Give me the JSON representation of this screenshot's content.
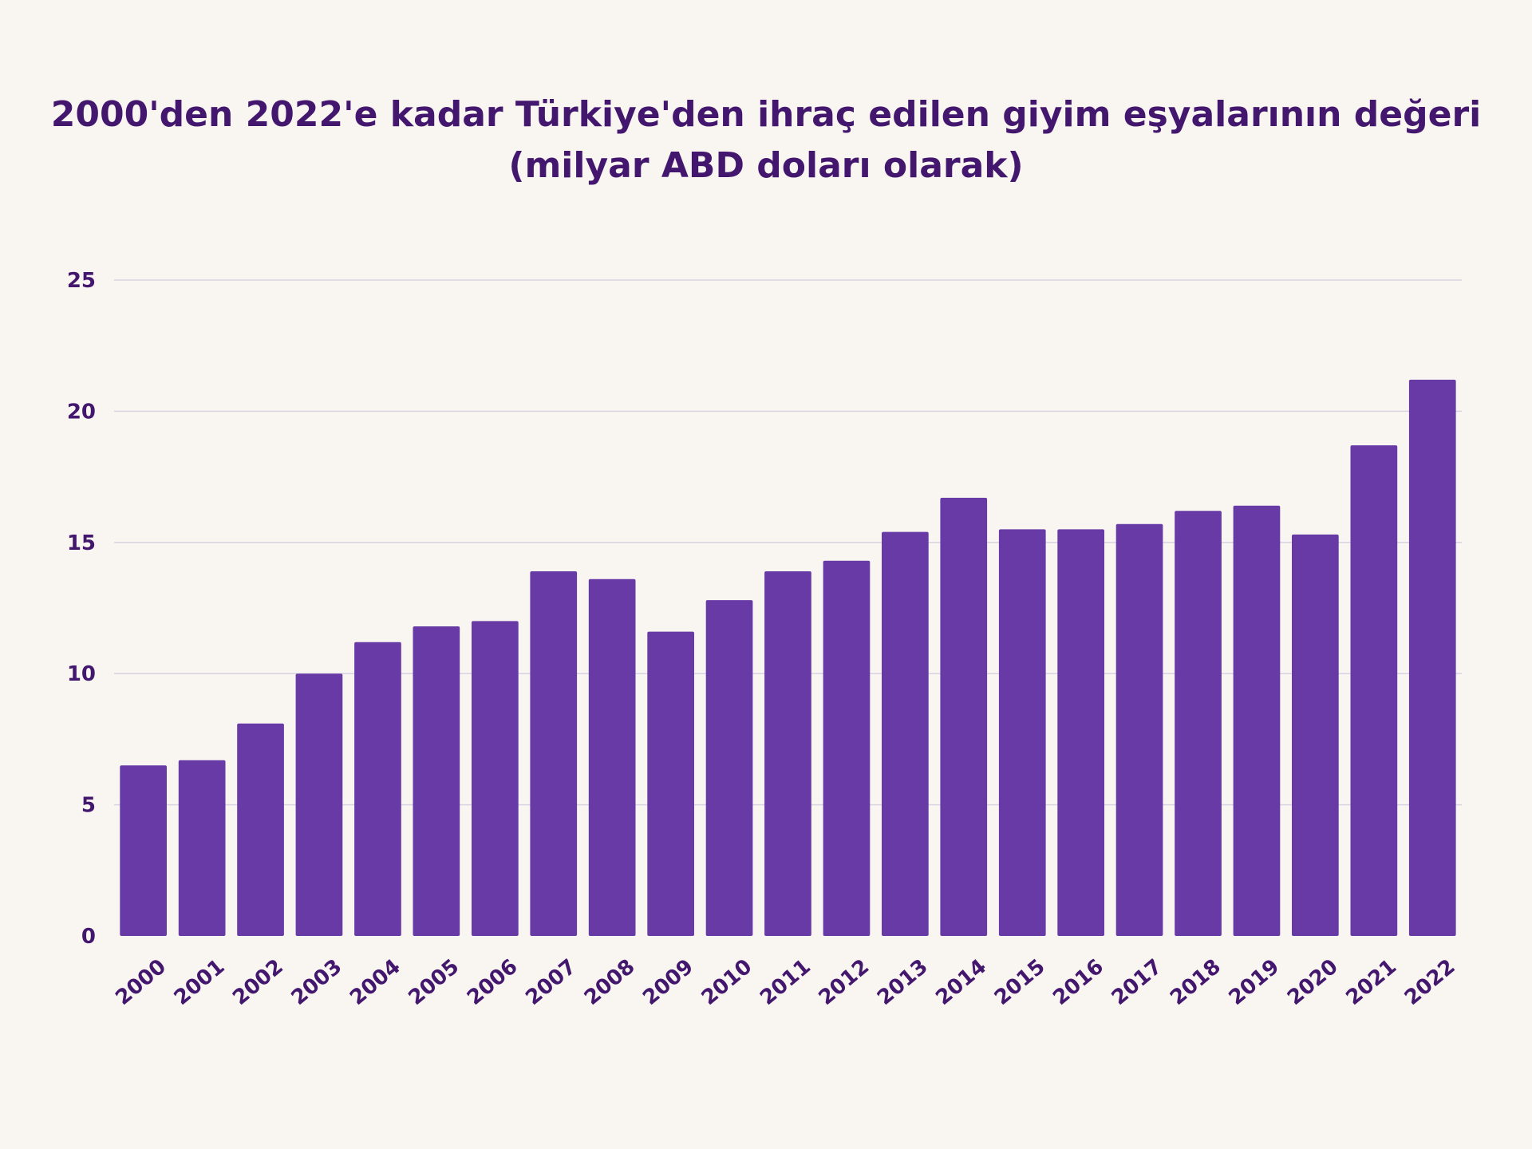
{
  "chart_data": {
    "type": "bar",
    "title_line1": "2000'den 2022'e kadar Türkiye'den ihraç edilen giyim eşyalarının değeri",
    "title_line2": "(milyar ABD doları olarak)",
    "xlabel": "",
    "ylabel": "",
    "categories": [
      "2000",
      "2001",
      "2002",
      "2003",
      "2004",
      "2005",
      "2006",
      "2007",
      "2008",
      "2009",
      "2010",
      "2011",
      "2012",
      "2013",
      "2014",
      "2015",
      "2016",
      "2017",
      "2018",
      "2019",
      "2020",
      "2021",
      "2022"
    ],
    "values": [
      6.5,
      6.7,
      8.1,
      10.0,
      11.2,
      11.8,
      12.0,
      13.9,
      13.6,
      11.6,
      12.8,
      13.9,
      14.3,
      15.4,
      16.7,
      15.5,
      15.5,
      15.7,
      16.2,
      16.4,
      15.3,
      18.7,
      21.2
    ],
    "ylim": [
      0,
      25
    ],
    "yticks": [
      0,
      5,
      10,
      15,
      20,
      25
    ],
    "grid": true,
    "bar_color": "#673aa6",
    "text_color": "#44176e",
    "background": "#f9f6f2"
  }
}
